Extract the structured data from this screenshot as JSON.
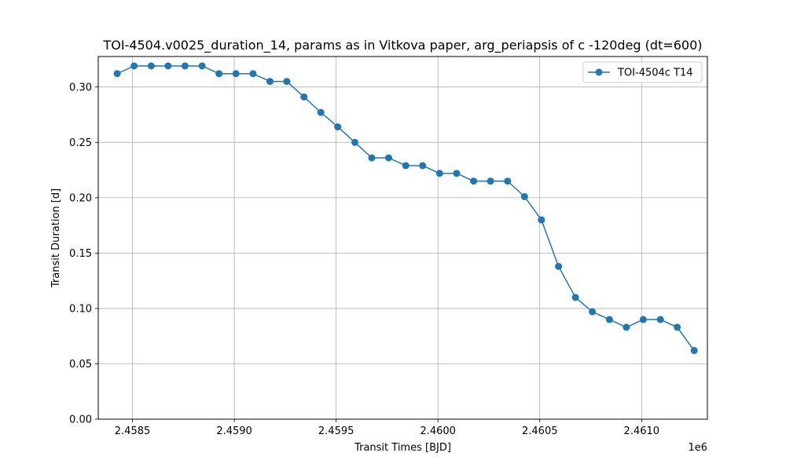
{
  "chart_data": {
    "type": "line",
    "title": "TOI-4504.v0025_duration_14, params as in Vitkova paper, arg_periapsis of c -120deg (dt=600)",
    "xlabel": "Transit Times [BJD]",
    "ylabel": "Transit Duration [d]",
    "x_offset_label": "1e6",
    "xlim": [
      2458332,
      2461323
    ],
    "ylim": [
      0.0,
      0.3275
    ],
    "xticks": [
      2458500,
      2459000,
      2459500,
      2460000,
      2460500,
      2461000
    ],
    "xtick_labels": [
      "2.4585",
      "2.4590",
      "2.4595",
      "2.4600",
      "2.4605",
      "2.4610"
    ],
    "yticks": [
      0.0,
      0.05,
      0.1,
      0.15,
      0.2,
      0.25,
      0.3
    ],
    "ytick_labels": [
      "0.00",
      "0.05",
      "0.10",
      "0.15",
      "0.20",
      "0.25",
      "0.30"
    ],
    "grid": true,
    "legend_position": "top-right",
    "series": [
      {
        "name": "TOI-4504c T14",
        "color": "#1f77b4",
        "marker": "circle",
        "x": [
          2458425,
          2458508,
          2458592,
          2458675,
          2458758,
          2458842,
          2458925,
          2459008,
          2459092,
          2459175,
          2459258,
          2459342,
          2459425,
          2459508,
          2459592,
          2459675,
          2459758,
          2459842,
          2459925,
          2460008,
          2460092,
          2460175,
          2460258,
          2460342,
          2460425,
          2460508,
          2460592,
          2460675,
          2460758,
          2460842,
          2460925,
          2461008,
          2461092,
          2461175,
          2461258
        ],
        "y": [
          0.312,
          0.319,
          0.319,
          0.319,
          0.319,
          0.319,
          0.312,
          0.312,
          0.312,
          0.305,
          0.305,
          0.291,
          0.277,
          0.264,
          0.25,
          0.236,
          0.236,
          0.229,
          0.229,
          0.222,
          0.222,
          0.215,
          0.215,
          0.215,
          0.201,
          0.18,
          0.138,
          0.11,
          0.097,
          0.09,
          0.083,
          0.09,
          0.09,
          0.083,
          0.062
        ]
      }
    ]
  }
}
